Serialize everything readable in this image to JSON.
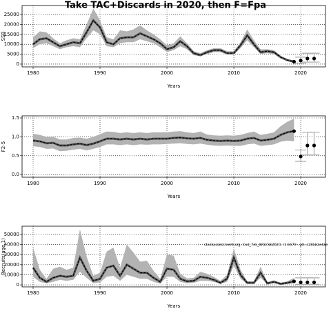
{
  "chart_data": [
    {
      "type": "band-line",
      "title": "Take TAC+Discards in 2020, then F=Fpa",
      "ylabel": "SSB",
      "xlabel": "Years",
      "x": [
        1980,
        1981,
        1982,
        1983,
        1984,
        1985,
        1986,
        1987,
        1988,
        1989,
        1990,
        1991,
        1992,
        1993,
        1994,
        1995,
        1996,
        1997,
        1998,
        1999,
        2000,
        2001,
        2002,
        2003,
        2004,
        2005,
        2006,
        2007,
        2008,
        2009,
        2010,
        2011,
        2012,
        2013,
        2014,
        2015,
        2016,
        2017,
        2018,
        2019
      ],
      "median": [
        10000,
        12500,
        13000,
        11000,
        9000,
        10000,
        11000,
        10500,
        16000,
        22000,
        18500,
        11000,
        10000,
        13000,
        13500,
        13500,
        15500,
        14000,
        12500,
        10500,
        7500,
        8500,
        11500,
        9000,
        5500,
        4500,
        6000,
        7000,
        7000,
        5500,
        5500,
        9500,
        14500,
        10000,
        6000,
        6500,
        6000,
        3500,
        2000,
        1200
      ],
      "upper": [
        13500,
        16500,
        16000,
        13000,
        10500,
        12000,
        13000,
        12500,
        20000,
        28000,
        22000,
        13500,
        12500,
        17000,
        16500,
        17500,
        19500,
        17000,
        15000,
        12500,
        9500,
        10500,
        14000,
        10500,
        6500,
        5500,
        7000,
        8000,
        8000,
        6500,
        6500,
        11000,
        17500,
        12000,
        7500,
        7500,
        7000,
        4000,
        2500,
        1800
      ],
      "lower": [
        8000,
        10000,
        10500,
        9000,
        7500,
        8500,
        9000,
        8500,
        13000,
        17000,
        15000,
        9000,
        8500,
        10500,
        11000,
        11000,
        12500,
        11500,
        10500,
        8500,
        6000,
        7000,
        9000,
        7500,
        4500,
        4000,
        5000,
        6000,
        6000,
        4800,
        4800,
        8000,
        12000,
        8500,
        5000,
        5500,
        5000,
        3000,
        1500,
        800
      ],
      "proj_x": [
        2019,
        2020,
        2021,
        2022
      ],
      "proj_values": [
        1200,
        1800,
        2800,
        2800
      ],
      "proj_low": [
        null,
        500,
        1000,
        1000
      ],
      "proj_high": [
        null,
        3500,
        5500,
        5500
      ],
      "xlim": [
        1978.35,
        2023.7
      ],
      "xticks": [
        1980,
        1990,
        2000,
        2010,
        2020
      ],
      "ylim": [
        -1400,
        29500
      ],
      "yticks": [
        0,
        5000,
        10000,
        15000,
        20000,
        25000
      ],
      "grid": true
    },
    {
      "type": "band-line",
      "ylabel": "F2-5",
      "xlabel": "Years",
      "x": [
        1980,
        1981,
        1982,
        1983,
        1984,
        1985,
        1986,
        1987,
        1988,
        1989,
        1990,
        1991,
        1992,
        1993,
        1994,
        1995,
        1996,
        1997,
        1998,
        1999,
        2000,
        2001,
        2002,
        2003,
        2004,
        2005,
        2006,
        2007,
        2008,
        2009,
        2010,
        2011,
        2012,
        2013,
        2014,
        2015,
        2016,
        2017,
        2018,
        2019
      ],
      "median": [
        0.9,
        0.88,
        0.83,
        0.84,
        0.77,
        0.77,
        0.8,
        0.82,
        0.78,
        0.82,
        0.88,
        0.95,
        0.95,
        0.93,
        0.95,
        0.93,
        0.95,
        0.93,
        0.95,
        0.95,
        0.95,
        0.97,
        0.98,
        0.96,
        0.95,
        0.97,
        0.92,
        0.9,
        0.89,
        0.9,
        0.89,
        0.9,
        0.95,
        0.97,
        0.9,
        0.92,
        0.95,
        1.05,
        1.12,
        1.15
      ],
      "upper": [
        1.08,
        1.05,
        1.0,
        1.0,
        0.93,
        0.93,
        0.97,
        0.98,
        0.95,
        1.0,
        1.07,
        1.14,
        1.13,
        1.1,
        1.12,
        1.1,
        1.12,
        1.1,
        1.12,
        1.12,
        1.12,
        1.14,
        1.15,
        1.12,
        1.1,
        1.14,
        1.06,
        1.04,
        1.03,
        1.04,
        1.03,
        1.05,
        1.1,
        1.14,
        1.05,
        1.08,
        1.12,
        1.28,
        1.4,
        1.48
      ],
      "lower": [
        0.75,
        0.73,
        0.68,
        0.69,
        0.62,
        0.63,
        0.66,
        0.68,
        0.64,
        0.68,
        0.73,
        0.8,
        0.8,
        0.78,
        0.8,
        0.78,
        0.8,
        0.79,
        0.8,
        0.8,
        0.81,
        0.82,
        0.83,
        0.81,
        0.8,
        0.82,
        0.79,
        0.77,
        0.76,
        0.77,
        0.76,
        0.76,
        0.8,
        0.82,
        0.76,
        0.78,
        0.8,
        0.87,
        0.9,
        0.88
      ],
      "proj_x": [
        2019,
        2020,
        2021,
        2022
      ],
      "proj_values": [
        1.15,
        0.48,
        0.77,
        0.77
      ],
      "proj_low": [
        null,
        0.35,
        0.52,
        0.52
      ],
      "proj_high": [
        null,
        0.65,
        1.12,
        1.12
      ],
      "xlim": [
        1978.35,
        2023.7
      ],
      "xticks": [
        1980,
        1990,
        2000,
        2010,
        2020
      ],
      "ylim": [
        -0.07,
        1.555
      ],
      "yticks": [
        {
          "value": 0,
          "label": "0.0"
        },
        {
          "value": 0.5,
          "label": "0.5"
        },
        {
          "value": 1,
          "label": "1.0"
        },
        {
          "value": 1.5,
          "label": "1.5"
        }
      ],
      "grid": true
    },
    {
      "type": "band-line",
      "ylabel": "Recruits(age 1)",
      "xlabel": "Years",
      "annotation": "stockassessment.org, Cod_7ek_WGCSE2020, r1.5570 , git: c28bb2e4ae",
      "x": [
        1980,
        1981,
        1982,
        1983,
        1984,
        1985,
        1986,
        1987,
        1988,
        1989,
        1990,
        1991,
        1992,
        1993,
        1994,
        1995,
        1996,
        1997,
        1998,
        1999,
        2000,
        2001,
        2002,
        2003,
        2004,
        2005,
        2006,
        2007,
        2008,
        2009,
        2010,
        2011,
        2012,
        2013,
        2014,
        2015,
        2016,
        2017,
        2018,
        2019
      ],
      "median": [
        17000,
        7000,
        3000,
        7000,
        9000,
        8000,
        9000,
        27000,
        14000,
        4000,
        6000,
        17000,
        19000,
        9000,
        20000,
        16000,
        12000,
        12000,
        7000,
        3000,
        16000,
        15000,
        6000,
        3500,
        4000,
        8000,
        7000,
        5000,
        2000,
        6000,
        27000,
        10000,
        2000,
        2000,
        12000,
        1500,
        3000,
        1000,
        2000,
        3500
      ],
      "upper": [
        37000,
        15000,
        6000,
        16000,
        18000,
        15000,
        17000,
        55000,
        28000,
        9000,
        12000,
        33000,
        37000,
        17000,
        40000,
        32000,
        23000,
        24000,
        14000,
        6000,
        30000,
        29000,
        11000,
        6500,
        7000,
        13000,
        11000,
        8000,
        4000,
        10000,
        36000,
        15000,
        3500,
        3500,
        18000,
        2500,
        4500,
        2000,
        3500,
        7000
      ],
      "lower": [
        8000,
        3000,
        1500,
        3000,
        5000,
        4000,
        5000,
        13000,
        7000,
        1500,
        2500,
        8000,
        9000,
        4000,
        10000,
        8000,
        6000,
        6000,
        3000,
        1200,
        8000,
        8000,
        3000,
        1500,
        2000,
        4000,
        4000,
        3000,
        1000,
        3000,
        19000,
        6000,
        1000,
        1000,
        7000,
        800,
        1500,
        400,
        900,
        1500
      ],
      "proj_x": [
        2019,
        2020,
        2021,
        2022
      ],
      "proj_values": [
        3500,
        2500,
        2500,
        2500
      ],
      "proj_low": [
        null,
        500,
        500,
        500
      ],
      "proj_high": [
        null,
        7000,
        7000,
        7000
      ],
      "xlim": [
        1978.35,
        2023.7
      ],
      "xticks": [
        1980,
        1990,
        2000,
        2010,
        2020
      ],
      "ylim": [
        -2000,
        58200
      ],
      "yticks": [
        0,
        10000,
        20000,
        30000,
        40000,
        50000
      ],
      "grid": true
    }
  ]
}
